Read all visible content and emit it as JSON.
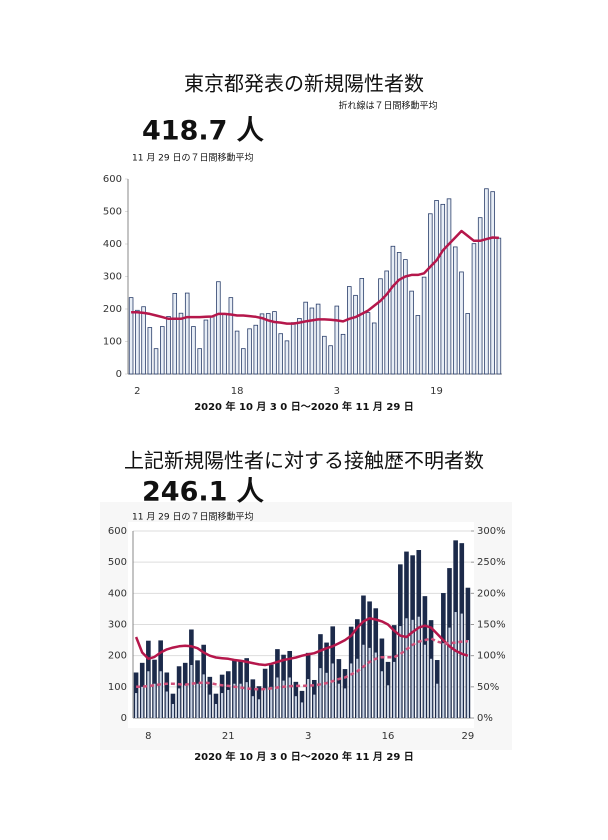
{
  "chart_data": [
    {
      "type": "bar",
      "title": "東京都発表の新規陽性者数",
      "note": "折れ線は７日間移動平均",
      "headline": "418.7 人",
      "headline_note": "11 月 29 日の７日間移動平均",
      "caption": "2020 年 10 月 3 0 日～2020 年 11 月 29 日",
      "categories": [
        null,
        "2",
        null,
        null,
        null,
        null,
        null,
        null,
        null,
        null,
        null,
        null,
        null,
        null,
        null,
        null,
        null,
        "18",
        null,
        null,
        null,
        null,
        null,
        null,
        null,
        null,
        null,
        null,
        null,
        null,
        null,
        null,
        null,
        "3",
        null,
        null,
        null,
        null,
        null,
        null,
        null,
        null,
        null,
        null,
        null,
        null,
        null,
        null,
        null,
        "19",
        null,
        null,
        null,
        null,
        null,
        null,
        null,
        null,
        null,
        null
      ],
      "ylim": [
        0,
        600
      ],
      "yticks": [
        0,
        100,
        200,
        300,
        400,
        500,
        600
      ],
      "grid": false,
      "series": [
        {
          "type": "bar",
          "color": "#e8eef6",
          "stroke": "#2b3f6b",
          "values": [
            235,
            196,
            207,
            143,
            78,
            146,
            177,
            248,
            187,
            249,
            146,
            78,
            166,
            177,
            284,
            185,
            235,
            132,
            78,
            139,
            150,
            185,
            186,
            192,
            124,
            102,
            158,
            171,
            221,
            203,
            215,
            116,
            87,
            209,
            122,
            269,
            242,
            294,
            189,
            157,
            293,
            317,
            393,
            374,
            352,
            255,
            180,
            298,
            493,
            534,
            522,
            539,
            391,
            314,
            186,
            401,
            481,
            570,
            561,
            418
          ]
        },
        {
          "type": "line",
          "color": "#b5174b",
          "values": [
            190,
            190,
            188,
            185,
            180,
            175,
            170,
            170,
            170,
            175,
            175,
            175,
            176,
            177,
            185,
            185,
            183,
            180,
            180,
            178,
            176,
            172,
            165,
            160,
            158,
            155,
            155,
            158,
            162,
            165,
            168,
            168,
            167,
            165,
            162,
            170,
            175,
            185,
            195,
            210,
            225,
            245,
            270,
            290,
            300,
            305,
            305,
            310,
            330,
            350,
            380,
            400,
            420,
            440,
            425,
            410,
            410,
            415,
            420,
            418.7
          ]
        }
      ]
    },
    {
      "type": "bar",
      "title": "上記新規陽性者に対する接触歴不明者数",
      "headline": "246.1 人",
      "headline_note": "11 月 29 日の７日間移動平均",
      "caption": "2020 年 10 月 3 0 日～2020 年 11 月 29 日",
      "categories": [
        null,
        null,
        "8",
        null,
        null,
        null,
        null,
        null,
        null,
        null,
        null,
        null,
        null,
        null,
        null,
        "21",
        null,
        null,
        null,
        null,
        null,
        null,
        null,
        null,
        null,
        null,
        null,
        null,
        "3",
        null,
        null,
        null,
        null,
        null,
        null,
        null,
        null,
        null,
        null,
        null,
        null,
        "16",
        null,
        null,
        null,
        null,
        null,
        null,
        null,
        null,
        null,
        null,
        null,
        null,
        "29"
      ],
      "ylim": [
        0,
        600
      ],
      "yticks": [
        0,
        100,
        200,
        300,
        400,
        500,
        600
      ],
      "y2lim": [
        0,
        300
      ],
      "y2ticks": [
        {
          "value": 0,
          "label": "0%"
        },
        {
          "value": 50,
          "label": "50%"
        },
        {
          "value": 100,
          "label": "100%"
        },
        {
          "value": 150,
          "label": "150%"
        },
        {
          "value": 200,
          "label": "200%"
        },
        {
          "value": 250,
          "label": "250%"
        },
        {
          "value": 300,
          "label": "300%"
        }
      ],
      "grid": true,
      "series": [
        {
          "type": "bar",
          "color": "#1c2a4a",
          "width": 0.75,
          "values": [
            146,
            177,
            248,
            187,
            249,
            146,
            78,
            166,
            177,
            284,
            185,
            235,
            132,
            78,
            139,
            150,
            185,
            186,
            192,
            124,
            102,
            158,
            171,
            221,
            203,
            215,
            116,
            87,
            209,
            122,
            269,
            242,
            294,
            189,
            157,
            293,
            317,
            393,
            374,
            352,
            255,
            180,
            298,
            493,
            534,
            522,
            539,
            391,
            314,
            186,
            401,
            481,
            570,
            561,
            418
          ]
        },
        {
          "type": "bar",
          "color": "#c9d3e3",
          "width": 0.35,
          "values": [
            80,
            100,
            150,
            110,
            150,
            85,
            45,
            95,
            105,
            170,
            110,
            140,
            75,
            45,
            80,
            90,
            110,
            110,
            115,
            70,
            60,
            95,
            100,
            130,
            120,
            130,
            70,
            50,
            125,
            75,
            160,
            145,
            175,
            110,
            95,
            175,
            190,
            235,
            225,
            210,
            150,
            105,
            180,
            295,
            320,
            315,
            325,
            235,
            190,
            110,
            240,
            290,
            340,
            335,
            250
          ]
        },
        {
          "type": "line",
          "color": "#b5174b",
          "axis": "y2",
          "values": [
            130,
            105,
            95,
            98,
            105,
            110,
            113,
            115,
            116,
            115,
            112,
            105,
            100,
            97,
            96,
            95,
            93,
            92,
            90,
            88,
            86,
            85,
            87,
            90,
            93,
            95,
            97,
            100,
            102,
            104,
            108,
            112,
            115,
            120,
            125,
            132,
            145,
            155,
            160,
            158,
            155,
            150,
            140,
            132,
            130,
            138,
            145,
            148,
            145,
            135,
            125,
            115,
            108,
            103,
            100
          ]
        },
        {
          "type": "line",
          "color": "#d0507a",
          "dashed": true,
          "values": [
            100,
            100,
            103,
            105,
            108,
            110,
            110,
            108,
            107,
            110,
            112,
            114,
            112,
            108,
            105,
            103,
            100,
            98,
            95,
            93,
            92,
            93,
            95,
            98,
            100,
            102,
            103,
            103,
            104,
            105,
            108,
            112,
            118,
            125,
            130,
            140,
            150,
            165,
            180,
            190,
            195,
            195,
            195,
            205,
            220,
            235,
            245,
            250,
            255,
            245,
            240,
            240,
            242,
            245,
            246.1
          ]
        }
      ]
    }
  ]
}
